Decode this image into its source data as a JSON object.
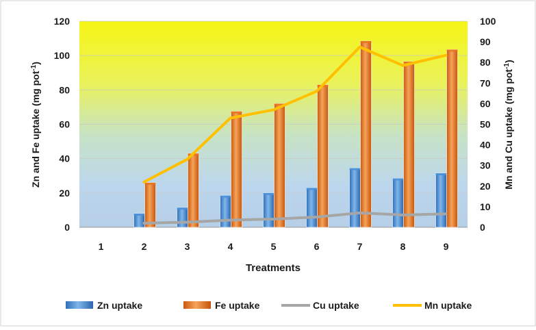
{
  "chart_data": {
    "type": "bar",
    "categories": [
      "1",
      "2",
      "3",
      "4",
      "5",
      "6",
      "7",
      "8",
      "9"
    ],
    "xlabel": "Treatments",
    "ylabel_left": "Zn and Fe uptake (mg pot",
    "ylabel_left_sup": "-1",
    "ylabel_left_end": ")",
    "ylabel_right": "Mn and Cu uptake (mg pot",
    "ylabel_right_sup": "-1",
    "ylabel_right_end": ")",
    "ylim_left": [
      0,
      120
    ],
    "yticks_left": [
      0,
      20,
      40,
      60,
      80,
      100,
      120
    ],
    "ylim_right": [
      0,
      100
    ],
    "yticks_right": [
      0,
      10,
      20,
      30,
      40,
      50,
      60,
      70,
      80,
      90,
      100
    ],
    "series": [
      {
        "name": "Zn uptake",
        "kind": "bar",
        "axis": "left",
        "color": "#4a90d9",
        "values": [
          0,
          8,
          11.5,
          18.5,
          20,
          23,
          34.5,
          28.5,
          31.5
        ]
      },
      {
        "name": "Fe uptake",
        "kind": "bar",
        "axis": "left",
        "color": "#e8731f",
        "values": [
          0,
          26,
          43,
          67.5,
          72,
          83,
          108.5,
          96.5,
          103.5
        ]
      },
      {
        "name": "Cu uptake",
        "kind": "line",
        "axis": "right",
        "color": "#a6a6a6",
        "values": [
          null,
          2,
          2.5,
          3.5,
          4,
          5,
          7,
          6,
          6.5
        ]
      },
      {
        "name": "Mn uptake",
        "kind": "line",
        "axis": "right",
        "color": "#ffc000",
        "values": [
          null,
          22,
          33,
          53,
          57,
          66,
          87.5,
          78.5,
          83.5
        ]
      }
    ],
    "grid": true,
    "legend_position": "bottom"
  }
}
